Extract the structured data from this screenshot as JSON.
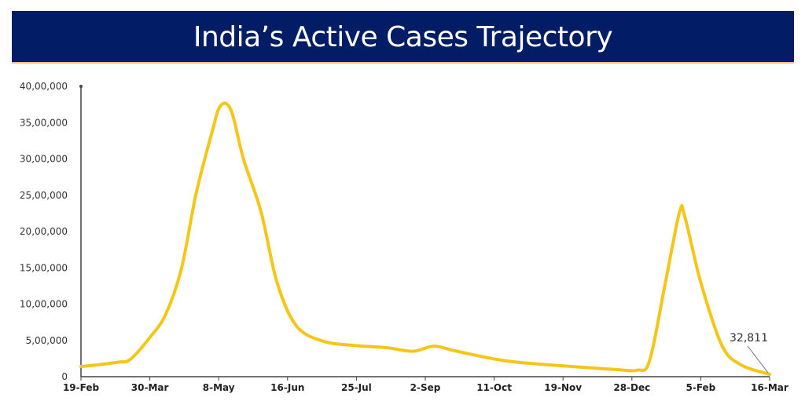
{
  "chart_data": {
    "type": "line",
    "title": "India’s Active Cases Trajectory",
    "xlabel": "",
    "ylabel": "",
    "ylim": [
      0,
      4000000
    ],
    "xlim": [
      "2021-02-19",
      "2022-03-16"
    ],
    "y_ticks": [
      "0",
      "5,00,000",
      "10,00,000",
      "15,00,000",
      "20,00,000",
      "25,00,000",
      "30,00,000",
      "35,00,000",
      "40,00,000"
    ],
    "x_ticks": [
      "19-Feb",
      "30-Mar",
      "8-May",
      "16-Jun",
      "25-Jul",
      "2-Sep",
      "11-Oct",
      "19-Nov",
      "28-Dec",
      "5-Feb",
      "16-Mar"
    ],
    "grid": false,
    "line_color": "#f5c518",
    "annotation": {
      "text": "32,811",
      "date": "2022-03-16",
      "value": 32811
    },
    "series": [
      {
        "points": [
          [
            "2021-02-19",
            140000
          ],
          [
            "2021-03-01",
            165000
          ],
          [
            "2021-03-12",
            200000
          ],
          [
            "2021-03-19",
            240000
          ],
          [
            "2021-03-30",
            540000
          ],
          [
            "2021-04-08",
            860000
          ],
          [
            "2021-04-17",
            1500000
          ],
          [
            "2021-04-25",
            2500000
          ],
          [
            "2021-05-04",
            3350000
          ],
          [
            "2021-05-09",
            3730000
          ],
          [
            "2021-05-15",
            3670000
          ],
          [
            "2021-05-22",
            3000000
          ],
          [
            "2021-06-01",
            2270000
          ],
          [
            "2021-06-10",
            1300000
          ],
          [
            "2021-06-21",
            700000
          ],
          [
            "2021-07-06",
            490000
          ],
          [
            "2021-07-24",
            430000
          ],
          [
            "2021-08-11",
            400000
          ],
          [
            "2021-08-26",
            350000
          ],
          [
            "2021-09-07",
            420000
          ],
          [
            "2021-09-20",
            350000
          ],
          [
            "2021-10-17",
            220000
          ],
          [
            "2021-11-13",
            160000
          ],
          [
            "2021-12-18",
            100000
          ],
          [
            "2021-12-31",
            90000
          ],
          [
            "2022-01-07",
            220000
          ],
          [
            "2022-01-16",
            1300000
          ],
          [
            "2022-01-24",
            2270000
          ],
          [
            "2022-01-27",
            2200000
          ],
          [
            "2022-02-05",
            1300000
          ],
          [
            "2022-02-17",
            430000
          ],
          [
            "2022-02-28",
            160000
          ],
          [
            "2022-03-16",
            32811
          ]
        ]
      }
    ]
  }
}
